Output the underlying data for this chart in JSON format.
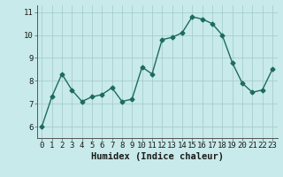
{
  "x": [
    0,
    1,
    2,
    3,
    4,
    5,
    6,
    7,
    8,
    9,
    10,
    11,
    12,
    13,
    14,
    15,
    16,
    17,
    18,
    19,
    20,
    21,
    22,
    23
  ],
  "y": [
    6.0,
    7.3,
    8.3,
    7.6,
    7.1,
    7.3,
    7.4,
    7.7,
    7.1,
    7.2,
    8.6,
    8.3,
    9.8,
    9.9,
    10.1,
    10.8,
    10.7,
    10.5,
    10.0,
    8.8,
    7.9,
    7.5,
    7.6,
    8.5
  ],
  "line_color": "#1e6b5e",
  "marker": "D",
  "marker_size": 2.5,
  "bg_color": "#c8eaea",
  "grid_color": "#a0c8c8",
  "xlabel": "Humidex (Indice chaleur)",
  "xlim": [
    -0.5,
    23.5
  ],
  "ylim": [
    5.5,
    11.3
  ],
  "yticks": [
    6,
    7,
    8,
    9,
    10,
    11
  ],
  "xticks": [
    0,
    1,
    2,
    3,
    4,
    5,
    6,
    7,
    8,
    9,
    10,
    11,
    12,
    13,
    14,
    15,
    16,
    17,
    18,
    19,
    20,
    21,
    22,
    23
  ],
  "xlabel_fontsize": 7.5,
  "tick_fontsize": 6.5,
  "line_width": 1.0
}
